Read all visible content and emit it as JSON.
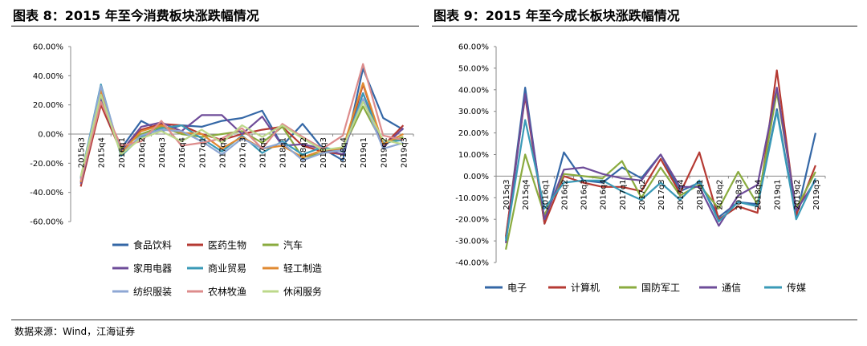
{
  "titles": {
    "left": "图表 8：2015 年至今消费板块涨跌幅情况",
    "right": "图表 9：2015 年至今成长板块涨跌幅情况"
  },
  "source": "数据来源：Wind，江海证券",
  "chart_data": [
    {
      "type": "line",
      "ylim": [
        -60,
        60
      ],
      "yticks": [
        "60.00%",
        "40.00%",
        "20.00%",
        "0.00%",
        "-20.00%",
        "-40.00%",
        "-60.00%"
      ],
      "x": [
        "2015q3",
        "2015q4",
        "2016q1",
        "2016q2",
        "2016q3",
        "2016q4",
        "2017q1",
        "2017q2",
        "2017q3",
        "2017q4",
        "2018q1",
        "2018q2",
        "2018q3",
        "2018q4",
        "2019q1",
        "2019q2",
        "2019q3"
      ],
      "series": [
        {
          "name": "食品饮料",
          "color": "#3467a6",
          "values": [
            -33,
            22,
            -10,
            9,
            2,
            6,
            5,
            9,
            11,
            16,
            -8,
            7,
            -10,
            -18,
            45,
            11,
            3
          ]
        },
        {
          "name": "医药生物",
          "color": "#b53a33",
          "values": [
            -36,
            20,
            -12,
            3,
            7,
            6,
            0,
            -4,
            0,
            3,
            5,
            -8,
            -12,
            -14,
            34,
            -8,
            6
          ]
        },
        {
          "name": "汽车",
          "color": "#8aab3f",
          "values": [
            -30,
            25,
            -10,
            0,
            5,
            0,
            -2,
            0,
            2,
            -6,
            5,
            -16,
            -13,
            -10,
            19,
            -7,
            -2
          ]
        },
        {
          "name": "家用电器",
          "color": "#6e4c99",
          "values": [
            -34,
            24,
            -12,
            5,
            8,
            2,
            13,
            13,
            0,
            12,
            -8,
            -7,
            -10,
            -14,
            28,
            -9,
            4
          ]
        },
        {
          "name": "商业贸易",
          "color": "#3a9ab7",
          "values": [
            -30,
            34,
            -15,
            -2,
            4,
            6,
            -3,
            -12,
            -1,
            -13,
            -5,
            -14,
            -9,
            -12,
            28,
            -6,
            -4
          ]
        },
        {
          "name": "轻工制造",
          "color": "#e08a32",
          "values": [
            -33,
            30,
            -13,
            2,
            6,
            1,
            0,
            -10,
            -2,
            -10,
            -8,
            -16,
            -11,
            -10,
            35,
            -7,
            0
          ]
        },
        {
          "name": "纺织服装",
          "color": "#8ea7d4",
          "values": [
            -31,
            33,
            -14,
            -1,
            3,
            2,
            -5,
            -14,
            -3,
            -10,
            -6,
            -18,
            -13,
            -11,
            24,
            -10,
            -6
          ]
        },
        {
          "name": "农林牧渔",
          "color": "#dd8c8c",
          "values": [
            -32,
            22,
            -8,
            -5,
            9,
            -8,
            -6,
            -3,
            4,
            -10,
            7,
            -2,
            -10,
            -1,
            48,
            -1,
            -4
          ]
        },
        {
          "name": "休闲服务",
          "color": "#bcd88a",
          "values": [
            -29,
            27,
            -14,
            -3,
            2,
            -5,
            3,
            -6,
            6,
            -2,
            6,
            -3,
            -11,
            -9,
            22,
            -4,
            -7
          ]
        }
      ]
    },
    {
      "type": "line",
      "ylim": [
        -40,
        60
      ],
      "yticks": [
        "60.00%",
        "50.00%",
        "40.00%",
        "30.00%",
        "20.00%",
        "10.00%",
        "0.00%",
        "-10.00%",
        "-20.00%",
        "-30.00%",
        "-40.00%"
      ],
      "x": [
        "2015q3",
        "2015q4",
        "2016q1",
        "2016q2",
        "2016q3",
        "2016q4",
        "2017q1",
        "2017q2",
        "2017q3",
        "2017q4",
        "2018q1",
        "2018q2",
        "2018q3",
        "2018q4",
        "2019q1",
        "2019q2",
        "2019q3"
      ],
      "series": [
        {
          "name": "电子",
          "color": "#3467a6",
          "values": [
            -29,
            41,
            -22,
            11,
            -2,
            -3,
            4,
            -1,
            10,
            -7,
            -3,
            -19,
            -12,
            -13,
            31,
            -19,
            20
          ]
        },
        {
          "name": "计算机",
          "color": "#b53a33",
          "values": [
            -28,
            37,
            -22,
            0,
            -3,
            -5,
            -5,
            -7,
            8,
            -8,
            11,
            -20,
            -14,
            -17,
            49,
            -18,
            5
          ]
        },
        {
          "name": "国防军工",
          "color": "#8aab3f",
          "values": [
            -34,
            10,
            -18,
            1,
            0,
            -1,
            7,
            -10,
            4,
            -9,
            -4,
            -15,
            2,
            -13,
            39,
            -15,
            2
          ]
        },
        {
          "name": "通信",
          "color": "#6e4c99",
          "values": [
            -31,
            38,
            -20,
            3,
            4,
            1,
            -1,
            -2,
            10,
            -5,
            -5,
            -23,
            -9,
            -4,
            41,
            -16,
            -2
          ]
        },
        {
          "name": "传媒",
          "color": "#3a9ab7",
          "values": [
            -30,
            26,
            -15,
            -3,
            -2,
            -2,
            -7,
            -11,
            -3,
            -11,
            -2,
            -21,
            -12,
            -14,
            30,
            -20,
            -1
          ]
        }
      ]
    }
  ]
}
